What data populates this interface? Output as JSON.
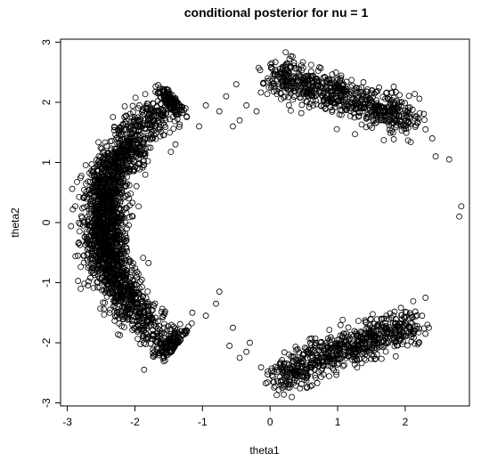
{
  "chart_data": {
    "type": "scatter",
    "title": "conditional posterior for nu = 1",
    "xlabel": "theta1",
    "ylabel": "theta2",
    "xlim": [
      -3.1,
      2.95
    ],
    "ylim": [
      -3.05,
      3.05
    ],
    "xticks": [
      -3,
      -2,
      -1,
      0,
      1,
      2
    ],
    "yticks": [
      -3,
      -2,
      -1,
      0,
      1,
      2,
      3
    ],
    "xtick_labels": [
      "-3",
      "-2",
      "-1",
      "0",
      "1",
      "2"
    ],
    "ytick_labels": [
      "-3",
      "-2",
      "-1",
      "0",
      "1",
      "2",
      "3"
    ],
    "marker": "open-circle",
    "grid": false,
    "clusters": [
      {
        "name": "",
        "arc_center": [
          0,
          0
        ],
        "radius_mean": 2.48,
        "radius_sd": 0.16,
        "angle_deg_range": [
          128,
          232
        ],
        "points": 2400
      },
      {
        "name": "",
        "band_from": [
          0.0,
          2.45
        ],
        "band_to": [
          2.1,
          1.75
        ],
        "band_sd": 0.16,
        "points": 700
      },
      {
        "name": "",
        "band_from": [
          0.1,
          -2.55
        ],
        "band_to": [
          2.15,
          -1.65
        ],
        "band_sd": 0.16,
        "points": 700
      }
    ],
    "sparse_points": [
      [
        -0.75,
        1.85
      ],
      [
        -0.95,
        1.95
      ],
      [
        -0.65,
        2.1
      ],
      [
        -0.55,
        1.6
      ],
      [
        -0.5,
        2.3
      ],
      [
        -0.35,
        1.95
      ],
      [
        -1.05,
        1.6
      ],
      [
        -1.25,
        1.9
      ],
      [
        -1.4,
        1.3
      ],
      [
        -0.45,
        1.7
      ],
      [
        -0.2,
        1.85
      ],
      [
        -0.8,
        -1.35
      ],
      [
        -0.95,
        -1.55
      ],
      [
        -0.6,
        -2.05
      ],
      [
        -0.55,
        -1.75
      ],
      [
        -0.35,
        -2.15
      ],
      [
        -0.45,
        -2.25
      ],
      [
        -1.15,
        -1.5
      ],
      [
        -1.25,
        -1.85
      ],
      [
        -0.3,
        -2.0
      ],
      [
        -0.75,
        -1.15
      ],
      [
        2.3,
        1.55
      ],
      [
        2.4,
        1.4
      ],
      [
        2.45,
        1.1
      ],
      [
        2.65,
        1.05
      ],
      [
        2.8,
        0.1
      ],
      [
        2.83,
        0.27
      ],
      [
        2.25,
        -1.55
      ],
      [
        2.3,
        -1.85
      ],
      [
        2.35,
        -1.75
      ],
      [
        2.3,
        -1.25
      ],
      [
        2.2,
        -2.0
      ]
    ]
  }
}
